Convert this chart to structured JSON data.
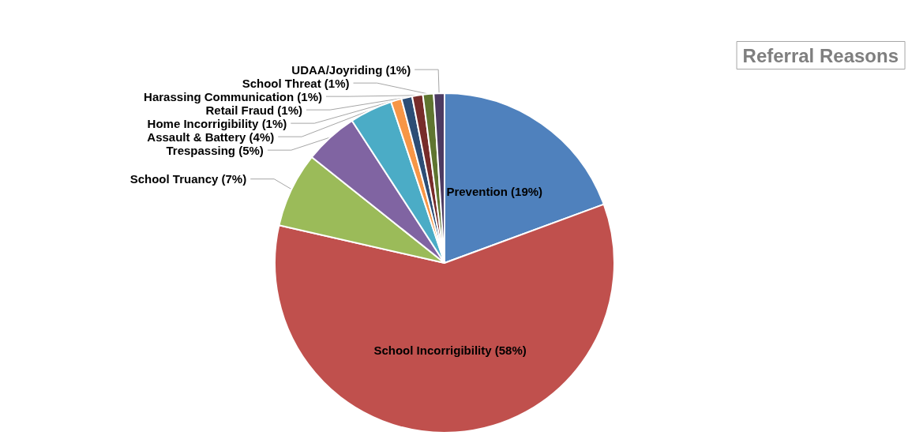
{
  "chart_data": {
    "type": "pie",
    "title": "Referral Reasons",
    "categories": [
      "Prevention (19%)",
      "School Incorrigibility (58%)",
      "School Truancy (7%)",
      "Trespassing (5%)",
      "Assault & Battery (4%)",
      "Home Incorrigibility (1%)",
      "Retail Fraud (1%)",
      "Harassing Communication (1%)",
      "School Threat (1%)",
      "UDAA/Joyriding (1%)"
    ],
    "values": [
      19,
      58,
      7,
      5,
      4,
      1,
      1,
      1,
      1,
      1
    ],
    "colors": [
      "#4f81bd",
      "#c0504d",
      "#9bbb59",
      "#8064a2",
      "#4bacc6",
      "#f79646",
      "#2c4d75",
      "#772c2a",
      "#5f7530",
      "#4d3b62"
    ]
  }
}
